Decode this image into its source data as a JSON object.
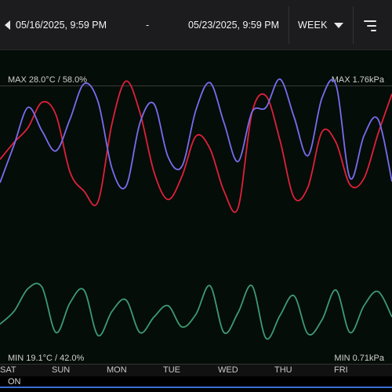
{
  "toolbar": {
    "start_date": "05/16/2025, 9:59 PM",
    "separator": "-",
    "end_date": "05/23/2025, 9:59 PM",
    "period": "WEEK"
  },
  "chart": {
    "max_left": "MAX 28.0°C / 58.0%",
    "max_right": "MAX 1.76kPa",
    "min_left": "MIN 19.1°C / 42.0%",
    "min_right": "MIN 0.71kPa",
    "days": [
      "SAT",
      "SUN",
      "MON",
      "TUE",
      "WED",
      "THU",
      "FRI"
    ]
  },
  "status": "ON",
  "colors": {
    "temperature": "#e0203a",
    "humidity": "#7a6cf0",
    "vpd": "#3d9a74",
    "status_line": "#3a6fd8"
  },
  "chart_data": {
    "type": "line",
    "x": [
      0,
      0.25,
      0.5,
      0.75,
      1,
      1.25,
      1.5,
      1.75,
      2,
      2.25,
      2.5,
      2.75,
      3,
      3.25,
      3.5,
      3.75,
      4,
      4.25,
      4.5,
      4.75,
      5,
      5.25,
      5.5,
      5.75,
      6,
      6.25,
      6.5,
      6.75,
      7
    ],
    "series": [
      {
        "key": "temperature",
        "unit": "°C",
        "ylim": [
          19.1,
          28.0
        ],
        "values": [
          23.8,
          24.6,
          25.3,
          26.5,
          25.9,
          23.2,
          22.3,
          21.8,
          25.5,
          27.5,
          26.0,
          23.2,
          21.9,
          23.0,
          24.9,
          24.3,
          22.3,
          21.5,
          26.0,
          26.8,
          24.7,
          22.0,
          22.5,
          25.1,
          24.6,
          22.6,
          22.9,
          25.0,
          26.9
        ]
      },
      {
        "key": "humidity",
        "unit": "%",
        "ylim": [
          42.0,
          58.0
        ],
        "values": [
          47.8,
          51.0,
          54.2,
          52.2,
          50.5,
          53.2,
          56.2,
          54.7,
          49.0,
          47.5,
          52.9,
          54.5,
          50.0,
          49.2,
          54.0,
          56.3,
          52.9,
          49.6,
          53.8,
          54.2,
          56.6,
          53.4,
          50.1,
          55.0,
          56.1,
          48.2,
          51.8,
          53.2,
          47.9
        ]
      },
      {
        "key": "vpd",
        "unit": "kPa",
        "ylim": [
          0.71,
          1.76
        ],
        "values": [
          0.94,
          1.03,
          1.19,
          1.2,
          0.88,
          1.09,
          1.18,
          0.86,
          1.03,
          1.11,
          0.88,
          0.99,
          1.07,
          0.92,
          1.01,
          1.21,
          0.88,
          1.02,
          1.21,
          0.84,
          1.0,
          1.14,
          0.87,
          0.97,
          1.18,
          0.88,
          1.07,
          1.17,
          0.99
        ]
      }
    ]
  }
}
